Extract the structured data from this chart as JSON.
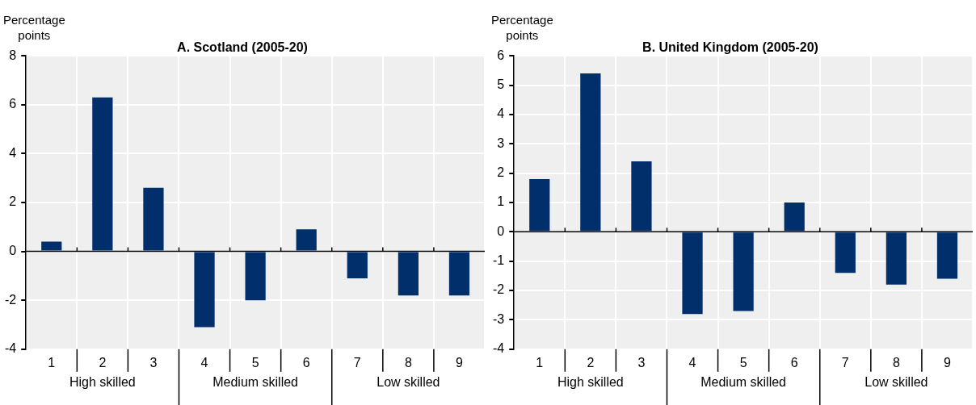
{
  "chart_data": [
    {
      "type": "bar",
      "title": "A. Scotland (2005-20)",
      "ylabel": "Percentage points",
      "categories": [
        "1",
        "2",
        "3",
        "4",
        "5",
        "6",
        "7",
        "8",
        "9"
      ],
      "values": [
        0.4,
        6.3,
        2.6,
        -3.1,
        -2.0,
        0.9,
        -1.1,
        -1.8,
        -1.8
      ],
      "color": "#002f6c",
      "ylim": [
        -4,
        8
      ],
      "yticks": [
        -4,
        -2,
        0,
        2,
        4,
        6,
        8
      ],
      "grid": true,
      "annotations": [
        "High skilled",
        "Medium skilled",
        "Low skilled"
      ]
    },
    {
      "type": "bar",
      "title": "B. United Kingdom (2005-20)",
      "ylabel": "Percentage points",
      "categories": [
        "1",
        "2",
        "3",
        "4",
        "5",
        "6",
        "7",
        "8",
        "9"
      ],
      "values": [
        1.8,
        5.4,
        2.4,
        -2.8,
        -2.7,
        1.0,
        -1.4,
        -1.8,
        -1.6
      ],
      "color": "#002f6c",
      "ylim": [
        -4,
        6
      ],
      "yticks": [
        -4,
        -3,
        -2,
        -1,
        0,
        1,
        2,
        3,
        4,
        5,
        6
      ],
      "grid": true,
      "annotations": [
        "High skilled",
        "Medium skilled",
        "Low skilled"
      ]
    }
  ]
}
